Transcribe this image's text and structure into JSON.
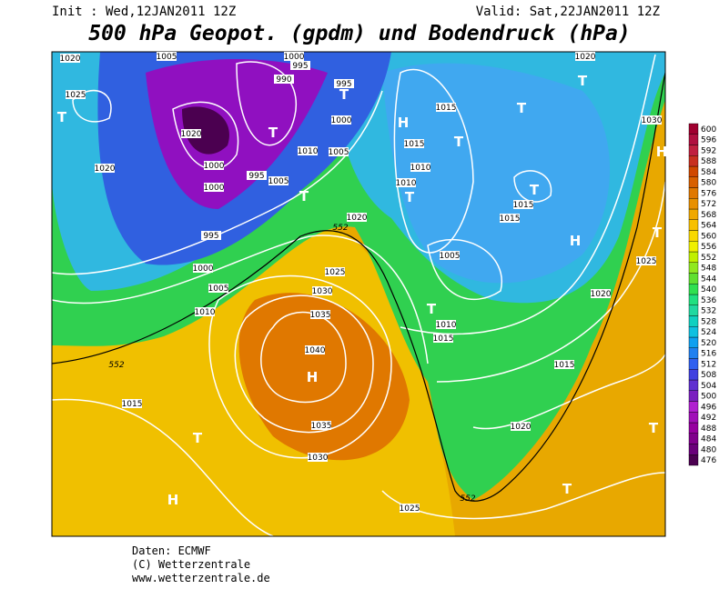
{
  "header": {
    "init": "Init : Wed,12JAN2011 12Z",
    "valid": "Valid: Sat,22JAN2011 12Z",
    "title": "500 hPa Geopot. (gpdm) und Bodendruck (hPa)"
  },
  "colorbar": {
    "levels": [
      476,
      480,
      484,
      488,
      492,
      496,
      500,
      504,
      508,
      512,
      516,
      520,
      524,
      528,
      532,
      536,
      540,
      544,
      548,
      552,
      556,
      560,
      564,
      568,
      572,
      576,
      580,
      584,
      588,
      592,
      596,
      600
    ],
    "colors": [
      "#4b0050",
      "#6a007a",
      "#80008c",
      "#9600a0",
      "#a010b8",
      "#b020d0",
      "#7a20c0",
      "#6030d0",
      "#4040e0",
      "#3060f0",
      "#2080f0",
      "#10a0f0",
      "#10c0e0",
      "#10d0c0",
      "#20d8a0",
      "#20e080",
      "#30e050",
      "#60e030",
      "#90e820",
      "#c0f000",
      "#f0f000",
      "#f8d800",
      "#f8c000",
      "#f0a800",
      "#e89000",
      "#e07800",
      "#d86000",
      "#d04800",
      "#c83020",
      "#c02040",
      "#b01040",
      "#a00030"
    ]
  },
  "isobar_labels": [
    "1020",
    "1005",
    "1000",
    "995",
    "990",
    "995",
    "1025",
    "1020",
    "1000",
    "1010",
    "1005",
    "1020",
    "1000",
    "995",
    "1005",
    "1000",
    "1015",
    "1015",
    "1010",
    "1010",
    "1020",
    "1030",
    "1015",
    "1015",
    "1020",
    "995",
    "1000",
    "1005",
    "1010",
    "1025",
    "1030",
    "1035",
    "1040",
    "1005",
    "1010",
    "1015",
    "1025",
    "1020",
    "1015",
    "1015",
    "1035",
    "1030",
    "1020",
    "1025"
  ],
  "contour_labels": [
    "552",
    "552",
    "552"
  ],
  "pressure_centers": [
    "T",
    "T",
    "T",
    "H",
    "T",
    "T",
    "T",
    "T",
    "T",
    "T",
    "H",
    "T",
    "H",
    "T",
    "H",
    "T",
    "H",
    "T",
    "T"
  ],
  "footer": [
    "Daten: ECMWF",
    "(C) Wetterzentrale",
    "www.wetterzentrale.de"
  ]
}
